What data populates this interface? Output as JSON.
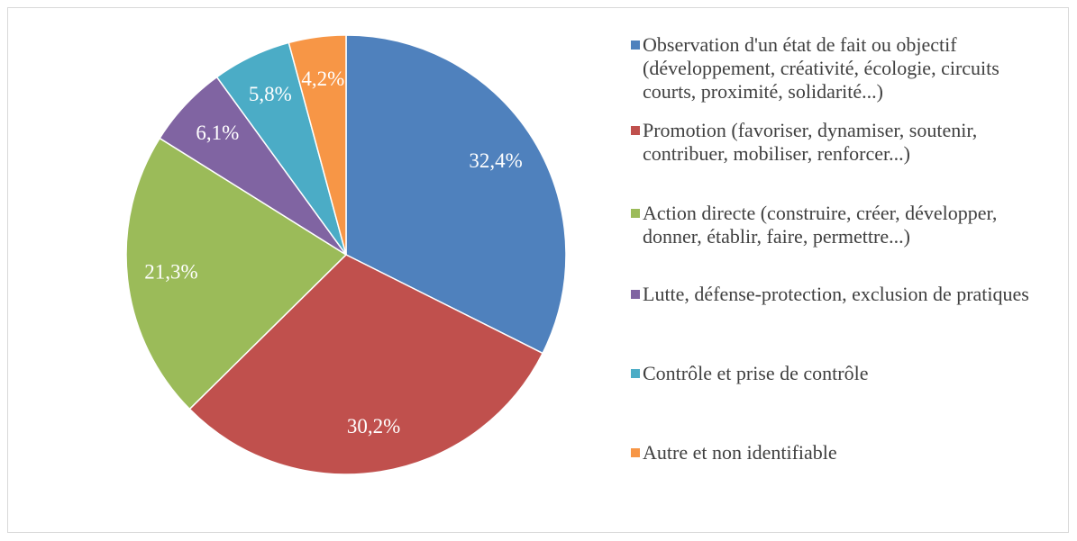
{
  "chart_data": {
    "type": "pie",
    "categories": [
      "Observation d'un état de fait ou objectif (développement, créativité, écologie, circuits courts, proximité, solidarité...)",
      "Promotion (favoriser, dynamiser, soutenir, contribuer, mobiliser, renforcer...)",
      "Action directe (construire, créer, développer, donner, établir, faire, permettre...)",
      "Lutte, défense-protection, exclusion de pratiques",
      "Contrôle et prise de contrôle",
      "Autre et non identifiable"
    ],
    "values": [
      32.4,
      30.2,
      21.3,
      6.1,
      5.8,
      4.2
    ],
    "value_labels": [
      "32,4%",
      "30,2%",
      "21,3%",
      "6,1%",
      "5,8%",
      "4,2%"
    ],
    "colors": [
      "#4f81bd",
      "#c0504d",
      "#9bbb59",
      "#8064a2",
      "#4bacc6",
      "#f79646"
    ],
    "legend": "right"
  }
}
